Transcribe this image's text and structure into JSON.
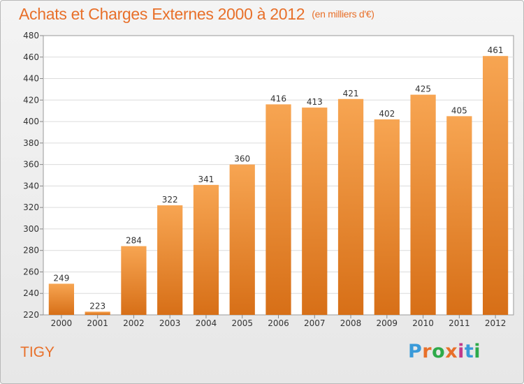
{
  "header": {
    "title": "Achats et Charges Externes 2000 à 2012",
    "unit": "(en milliers d'€)"
  },
  "footer": {
    "commune": "TIGY",
    "logo_text": "Proxiti",
    "logo_colors": [
      "#3a9ad9",
      "#e8702a",
      "#2eaa4a",
      "#e8702a",
      "#c23a8a",
      "#3a9ad9",
      "#2eaa4a"
    ]
  },
  "chart_data": {
    "type": "bar",
    "title": "Achats et Charges Externes 2000 à 2012",
    "subtitle": "(en milliers d'€)",
    "xlabel": "",
    "ylabel": "",
    "categories": [
      "2000",
      "2001",
      "2002",
      "2003",
      "2004",
      "2005",
      "2006",
      "2007",
      "2008",
      "2009",
      "2010",
      "2011",
      "2012"
    ],
    "values": [
      249,
      223,
      284,
      322,
      341,
      360,
      416,
      413,
      421,
      402,
      425,
      405,
      461
    ],
    "ylim": [
      220,
      480
    ],
    "yticks": [
      220,
      240,
      260,
      280,
      300,
      320,
      340,
      360,
      380,
      400,
      420,
      440,
      460,
      480
    ],
    "grid": true,
    "legend": "none",
    "bar_color_top": "#f7a552",
    "bar_color_bottom": "#d76f17",
    "title_color": "#e8702a"
  }
}
